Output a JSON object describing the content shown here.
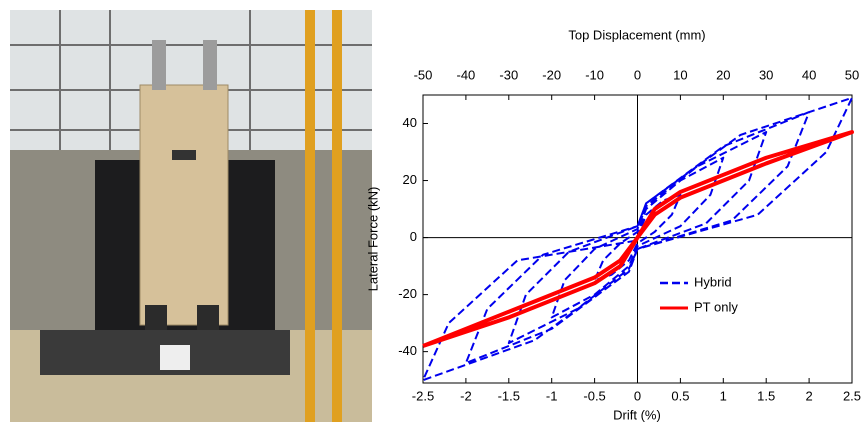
{
  "chart_data": {
    "type": "line",
    "title": "Top Displacement (mm)",
    "x_label": "Drift (%)",
    "y_label": "Lateral Force (kN)",
    "xlim": [
      -2.5,
      2.5
    ],
    "xticks": [
      -2.5,
      -2,
      -1.5,
      -1,
      -0.5,
      0,
      0.5,
      1,
      1.5,
      2,
      2.5
    ],
    "x2lim": [
      -50,
      50
    ],
    "x2ticks": [
      -50,
      -40,
      -30,
      -20,
      -10,
      0,
      10,
      20,
      30,
      40,
      50
    ],
    "ylim": [
      -51,
      50
    ],
    "yticks": [
      -40,
      -20,
      0,
      20,
      40
    ],
    "zero_lines": true,
    "legend": "lower right",
    "series": [
      {
        "name": "Hybrid",
        "color": "#0000ee",
        "style": "dashed",
        "x": [
          0,
          0.1,
          0.3,
          0.5,
          0.4,
          0.2,
          0,
          -0.1,
          -0.3,
          -0.5,
          -0.4,
          -0.2,
          0,
          0.1,
          0.5,
          1,
          0.85,
          0.5,
          0,
          -0.1,
          -0.5,
          -1,
          -0.85,
          -0.5,
          0,
          0.1,
          0.7,
          1.5,
          1.3,
          0.8,
          0,
          -0.1,
          -0.7,
          -1.5,
          -1.3,
          -0.8,
          0,
          0.1,
          1,
          2,
          1.75,
          1.1,
          0,
          -0.1,
          -1,
          -2,
          -1.75,
          -1.1,
          0,
          0.1,
          1.2,
          2.5,
          2.2,
          1.4,
          0,
          -0.1,
          -1.2,
          -2.5,
          -2.2,
          -1.4,
          0
        ],
        "values": [
          0,
          8,
          13,
          15,
          8,
          2,
          -2,
          -8,
          -13,
          -15,
          -8,
          -2,
          2,
          10,
          20,
          28,
          15,
          4,
          -3,
          -10,
          -20,
          -28,
          -15,
          -4,
          3,
          11,
          25,
          37,
          20,
          5,
          -4,
          -11,
          -25,
          -37,
          -20,
          -5,
          4,
          12,
          32,
          44,
          25,
          6,
          -4,
          -12,
          -32,
          -44,
          -25,
          -6,
          4,
          12,
          36,
          49,
          30,
          8,
          -4,
          -12,
          -36,
          -50,
          -30,
          -8,
          -1
        ]
      },
      {
        "name": "PT only",
        "color": "#ff0000",
        "style": "solid",
        "x": [
          -2.5,
          -1.5,
          -0.5,
          -0.2,
          0,
          0.2,
          0.5,
          1.5,
          2.5,
          1.5,
          0.5,
          0.2,
          0,
          -0.2,
          -0.5,
          -1.5,
          -2.5
        ],
        "values": [
          -38,
          -28,
          -16,
          -10,
          0,
          10,
          16,
          28,
          37,
          26,
          14,
          8,
          0,
          -8,
          -14,
          -26,
          -38
        ]
      }
    ]
  }
}
